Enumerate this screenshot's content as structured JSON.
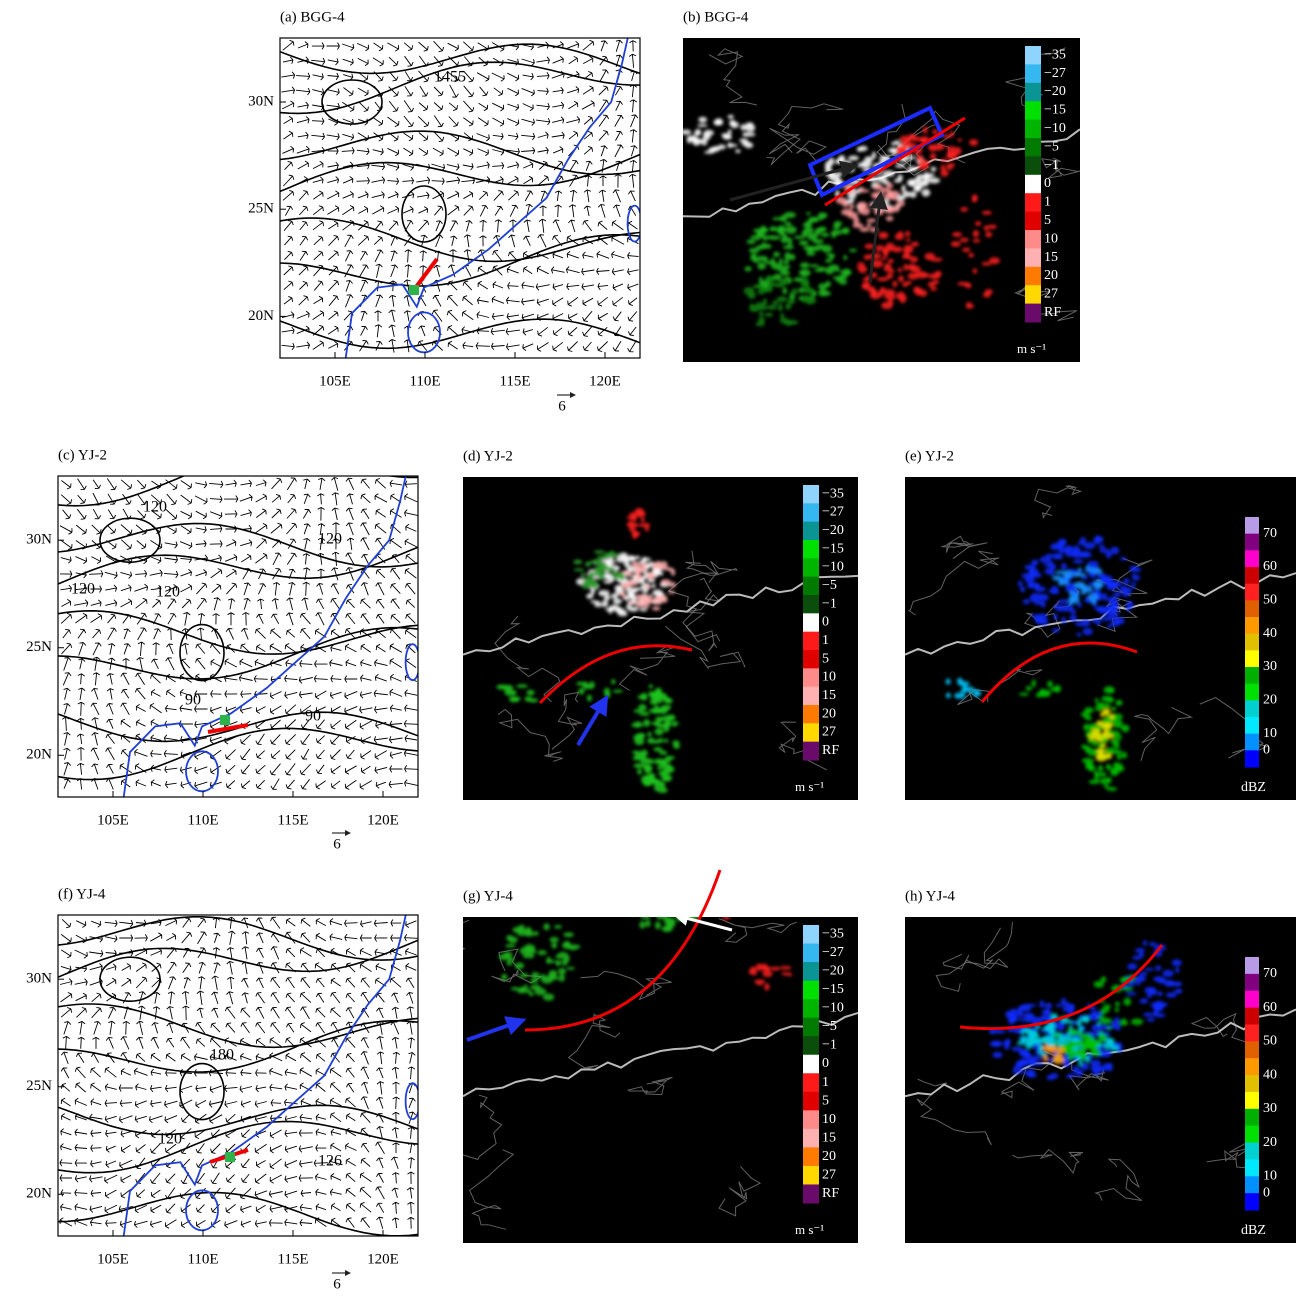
{
  "panels": [
    {
      "title": "(a) BGG-4",
      "lat_labels": [
        "30N",
        "25N",
        "20N"
      ],
      "lon_labels": [
        "105E",
        "110E",
        "115E",
        "120E"
      ],
      "contour_labels": [
        "1455"
      ],
      "reference_vector": "6"
    },
    {
      "title": "(b) BGG-4",
      "colorbar": {
        "labels": [
          "−35",
          "−27",
          "−20",
          "−15",
          "−10",
          "−5",
          "−1",
          "0",
          "1",
          "5",
          "10",
          "15",
          "20",
          "27",
          "RF"
        ],
        "unit": "m s⁻¹"
      }
    },
    {
      "title": "(c) YJ-2",
      "lat_labels": [
        "30N",
        "25N",
        "20N"
      ],
      "lon_labels": [
        "105E",
        "110E",
        "115E",
        "120E"
      ],
      "contour_labels": [
        "120",
        "120",
        "120",
        "120",
        "90",
        "90"
      ],
      "reference_vector": "6"
    },
    {
      "title": "(d) YJ-2",
      "colorbar": {
        "labels": [
          "−35",
          "−27",
          "−20",
          "−15",
          "−10",
          "−5",
          "−1",
          "0",
          "1",
          "5",
          "10",
          "15",
          "20",
          "27",
          "RF"
        ],
        "unit": "m s⁻¹"
      }
    },
    {
      "title": "(e) YJ-2",
      "colorbar": {
        "labels": [
          "70",
          "60",
          "50",
          "40",
          "30",
          "20",
          "10",
          "0"
        ],
        "unit": "dBZ"
      }
    },
    {
      "title": "(f) YJ-4",
      "lat_labels": [
        "30N",
        "25N",
        "20N"
      ],
      "lon_labels": [
        "105E",
        "110E",
        "115E",
        "120E"
      ],
      "contour_labels": [
        "180",
        "120",
        "126"
      ],
      "reference_vector": "6"
    },
    {
      "title": "(g) YJ-4",
      "colorbar": {
        "labels": [
          "−35",
          "−27",
          "−20",
          "−15",
          "−10",
          "−5",
          "−1",
          "0",
          "1",
          "5",
          "10",
          "15",
          "20",
          "27",
          "RF"
        ],
        "unit": "m s⁻¹"
      }
    },
    {
      "title": "(h) YJ-4",
      "colorbar": {
        "labels": [
          "70",
          "60",
          "50",
          "40",
          "30",
          "20",
          "10",
          "0"
        ],
        "unit": "dBZ"
      }
    }
  ]
}
